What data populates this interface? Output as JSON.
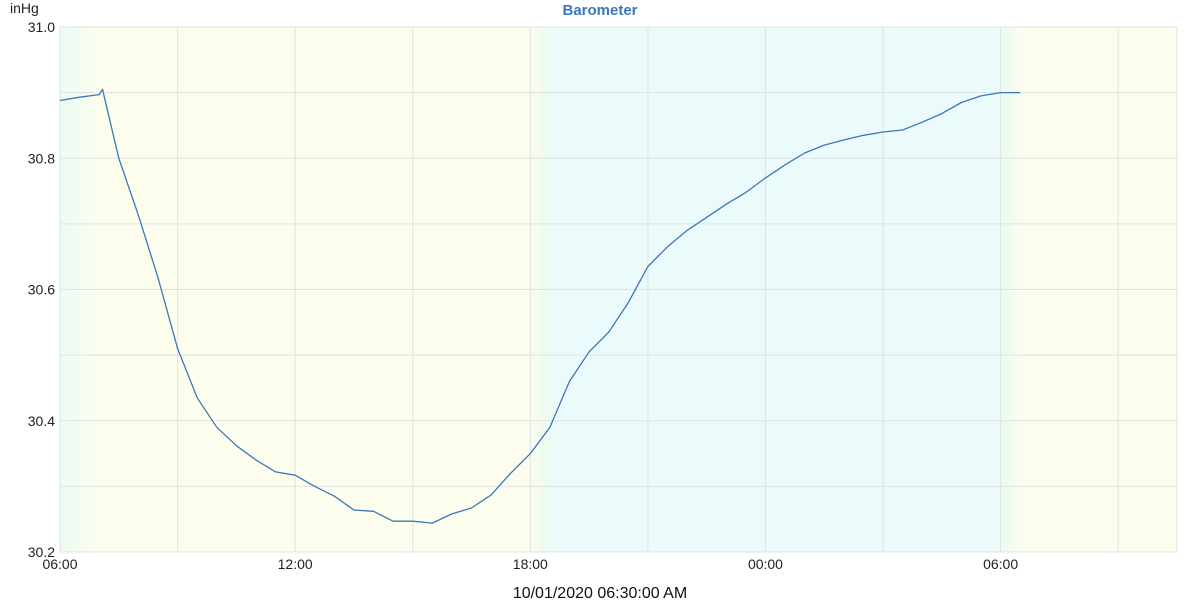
{
  "chart_data": {
    "type": "line",
    "title": "Barometer",
    "ylabel": "inHg",
    "timestamp": "10/01/2020 06:30:00 AM",
    "xlim": [
      "2020-10-01T06:00",
      "2020-10-02T10:30"
    ],
    "ylim": [
      30.2,
      31.0
    ],
    "yticks": [
      {
        "value": 30.2,
        "label": "30.2"
      },
      {
        "value": 30.4,
        "label": "30.4"
      },
      {
        "value": 30.6,
        "label": "30.6"
      },
      {
        "value": 30.8,
        "label": "30.8"
      },
      {
        "value": 31.0,
        "label": "31.0"
      }
    ],
    "xticks": [
      {
        "value": "2020-10-01T06:00",
        "label": "06:00"
      },
      {
        "value": "2020-10-01T12:00",
        "label": "12:00"
      },
      {
        "value": "2020-10-01T18:00",
        "label": "18:00"
      },
      {
        "value": "2020-10-02T00:00",
        "label": "00:00"
      },
      {
        "value": "2020-10-02T06:00",
        "label": "06:00"
      }
    ],
    "grid": true,
    "legend": "none",
    "background_bands": [
      {
        "from": "2020-10-01T07:00",
        "to": "2020-10-01T18:00",
        "shade": "day",
        "color": "#fdfdee"
      },
      {
        "from": "2020-10-01T18:00",
        "to": "2020-10-02T06:30",
        "shade": "night",
        "color": "#ebfbfb"
      },
      {
        "from": "2020-10-02T06:30",
        "to": "2020-10-02T10:30",
        "shade": "day",
        "color": "#fdfdee"
      }
    ],
    "colors": {
      "line": "#3b78b5",
      "title": "#3b78b5",
      "grid": "#dde4e4"
    },
    "series": [
      {
        "x": [
          "2020-10-01T06:00",
          "2020-10-01T06:30",
          "2020-10-01T07:00",
          "2020-10-01T07:05",
          "2020-10-01T07:30",
          "2020-10-01T08:00",
          "2020-10-01T08:30",
          "2020-10-01T09:00",
          "2020-10-01T09:30",
          "2020-10-01T10:00",
          "2020-10-01T10:30",
          "2020-10-01T11:00",
          "2020-10-01T11:30",
          "2020-10-01T12:00",
          "2020-10-01T12:30",
          "2020-10-01T13:00",
          "2020-10-01T13:30",
          "2020-10-01T14:00",
          "2020-10-01T14:30",
          "2020-10-01T15:00",
          "2020-10-01T15:30",
          "2020-10-01T16:00",
          "2020-10-01T16:30",
          "2020-10-01T17:00",
          "2020-10-01T17:30",
          "2020-10-01T18:00",
          "2020-10-01T18:30",
          "2020-10-01T19:00",
          "2020-10-01T19:30",
          "2020-10-01T20:00",
          "2020-10-01T20:30",
          "2020-10-01T21:00",
          "2020-10-01T21:30",
          "2020-10-01T22:00",
          "2020-10-01T22:30",
          "2020-10-01T23:00",
          "2020-10-01T23:30",
          "2020-10-02T00:00",
          "2020-10-02T00:30",
          "2020-10-02T01:00",
          "2020-10-02T01:30",
          "2020-10-02T02:00",
          "2020-10-02T02:30",
          "2020-10-02T03:00",
          "2020-10-02T03:30",
          "2020-10-02T04:00",
          "2020-10-02T04:30",
          "2020-10-02T05:00",
          "2020-10-02T05:30",
          "2020-10-02T06:00",
          "2020-10-02T06:30"
        ],
        "y": [
          30.888,
          30.893,
          30.897,
          30.905,
          30.8,
          30.713,
          30.618,
          30.51,
          30.435,
          30.39,
          30.362,
          30.34,
          30.322,
          30.317,
          30.3,
          30.285,
          30.264,
          30.262,
          30.247,
          30.247,
          30.244,
          30.258,
          30.267,
          30.287,
          30.32,
          30.35,
          30.39,
          30.46,
          30.505,
          30.535,
          30.58,
          30.635,
          30.665,
          30.69,
          30.71,
          30.73,
          30.748,
          30.77,
          30.79,
          30.808,
          30.82,
          30.828,
          30.835,
          30.84,
          30.843,
          30.855,
          30.868,
          30.885,
          30.895,
          30.9,
          30.9
        ]
      }
    ]
  }
}
